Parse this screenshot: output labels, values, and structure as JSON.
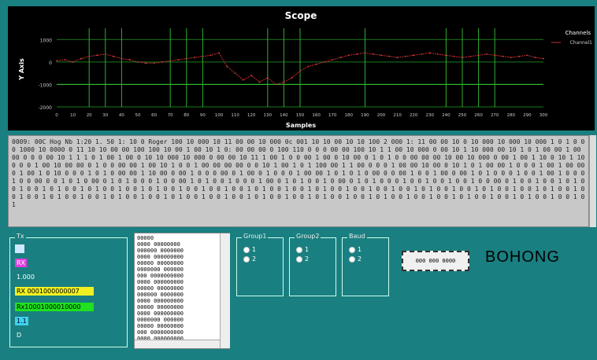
{
  "chart_data": {
    "type": "line",
    "title": "Scope",
    "xlabel": "Samples",
    "ylabel": "Y Axis",
    "legend": {
      "placement": "top-right",
      "entries": [
        "Channels",
        "Channel1"
      ]
    },
    "y_ticks": [
      "1000",
      "0",
      "-1000",
      "-2000"
    ],
    "ylim": [
      -2000,
      1500
    ],
    "x_ticks": [
      "0",
      "10",
      "20",
      "30",
      "40",
      "50",
      "60",
      "70",
      "80",
      "90",
      "100",
      "110",
      "120",
      "130",
      "140",
      "150",
      "160",
      "170",
      "180",
      "190",
      "200",
      "210",
      "220",
      "230",
      "240",
      "250",
      "260",
      "270",
      "280",
      "290",
      "300"
    ],
    "xlim": [
      0,
      300
    ],
    "grid": true,
    "series": [
      {
        "name": "Channel1",
        "x": [
          0,
          5,
          10,
          15,
          20,
          25,
          30,
          35,
          40,
          45,
          50,
          55,
          60,
          65,
          70,
          75,
          80,
          85,
          90,
          95,
          100,
          105,
          110,
          115,
          120,
          125,
          130,
          135,
          140,
          145,
          150,
          155,
          160,
          165,
          170,
          175,
          180,
          185,
          190,
          195,
          200,
          205,
          210,
          215,
          220,
          225,
          230,
          235,
          240,
          245,
          250,
          255,
          260,
          265,
          270,
          275,
          280,
          285,
          290,
          295,
          300
        ],
        "values": [
          50,
          100,
          0,
          150,
          250,
          300,
          350,
          250,
          150,
          100,
          0,
          -50,
          -50,
          0,
          50,
          100,
          150,
          200,
          250,
          300,
          400,
          -200,
          -500,
          -800,
          -600,
          -900,
          -700,
          -1000,
          -900,
          -700,
          -400,
          -200,
          -100,
          0,
          100,
          200,
          300,
          350,
          400,
          350,
          300,
          250,
          200,
          250,
          300,
          350,
          400,
          350,
          300,
          250,
          200,
          250,
          300,
          350,
          300,
          250,
          200,
          250,
          300,
          200,
          150
        ]
      }
    ],
    "vlines_x": [
      20,
      30,
      40,
      70,
      80,
      90,
      130,
      140,
      150,
      190,
      240,
      250,
      260,
      270
    ]
  },
  "log_text": "0009: 00C Hog Nb 1:20 1. 50 1: 10 0 Roger 100 10 000 10 11 00 00 10 000 0c 001 10 10 00 10 10 100 2 000 1: 11 00 00 10 0 10 000 10 000 10 000 1 0 1 0 0 0 1000 10 0000 0 11 10 10 00 00 100 100 10 00 1 00 10 1 0: 00 00 00 0 100 110 0 0 0 00 00 100 10 1 1 00 10 000 0 00 10 1 10 000 00 10 1 0 1 00 00 1 00 00 0 0 0 00 10 1 1 1 0 1 00 1 00 0 10 10 000 10 000 0 00 00 10 11 1 00 1 0 0 00 1 00 0 10 00 0 1 0 1 0 0 00 00 00 10 00 10 000 0 00 1 00 1 10 0 10 1 100 0 0 1 00 10 00 00 0 1 0 0 00 00 1 00 10 1 0 0 1 00 00 00 00 0 0 10 1 00 1 0 1 100 00 1 1 00 0 0 0 1 00 00 10 00 0 10 1 0 1 00 00 1 0 0 0 1 00 1 00 00 0 1 00 1 0 10 0 0 0 1 0 1 0 00 00 1 10 00 0 00 1 0 0 0 00 0 1 00 0 1 0 0 0 1 00 00 1 0 1 0 1 0 00 0 0 00 1 0 0 1 00 0 00 1 0 1 0 0 0 1 0 0 1 00 1 0 0 0 1 0 0 00 0 0 1 0 1 0 00 0 1 0 1 0 0 0 1 0 0 00 1 0 1 0 0 1 0 0 0 1 00 0 1 0 1 0 0 1 0 00 0 1 0 1 0 0 0 1 0 0 1 0 0 1 0 0 1 0 0 00 0 1 0 0 1 0 0 1 0 1 0 0 1 0 0 1 0 1 0 0 1 0 1 0 0 1 0 0 1 0 1 0 0 1 0 0 1 0 0 1 0 0 1 0 1 0 0 1 0 0 1 0 1 0 0 1 0 0 1 0 0 1 0 0 1 0 1 0 0 1 0 0 1 0 1 0 0 1 0 0 1 0 1 0 0 1 0 0 1 0 0 1 0 1 0 0 1 0 0 1 0 1 0 0 1 0 0 1 0 1 0 0 1 0 0 1 0 0 1 0 1 0 0 1 0 0 1 0 1 0 0 1 0 0 1 0 1 0 0 1 0 0 1 0 0 1 0 1 0 0 1 0 0 1 0 1 0 0 1 0 0 1 0 1",
  "status_panel": {
    "title": "Tx",
    "items": [
      {
        "text": "",
        "bg": "#cfe7ff",
        "color": "#000"
      },
      {
        "text": "RX",
        "bg": "#e040e0",
        "color": "#fff"
      },
      {
        "text": "1.000",
        "bg": "transparent",
        "color": "#fff"
      },
      {
        "text": "RX 0001000000007",
        "bg": "#f0f020",
        "color": "#000"
      },
      {
        "text": "Rx10001000010000",
        "bg": "#20e020",
        "color": "#000"
      },
      {
        "text": "1.1",
        "bg": "#40d0f0",
        "color": "#000"
      },
      {
        "text": "D",
        "bg": "transparent",
        "color": "#fff"
      }
    ]
  },
  "listbox": {
    "lines": [
      "00000",
      "0000 00000000",
      "000000 0000000",
      "0000 000000000",
      "00000 00000000",
      "0000000 000000",
      "000 0000000000",
      "0000 000000000",
      "00000 00000000",
      "000000 0000000",
      "0000 000000000",
      "00000 00000000",
      "0000 000000000",
      "0000000 000000",
      "00000 00000000",
      "000 0000000000",
      "0000 000000000",
      "000000 0000000",
      "0000 000000000"
    ]
  },
  "groups": [
    {
      "title": "Group1",
      "options": [
        "1",
        "2"
      ]
    },
    {
      "title": "Group2",
      "options": [
        "1",
        "2"
      ]
    },
    {
      "title": "Baud",
      "options": [
        "1",
        "2"
      ]
    }
  ],
  "button_label": "000 000 0000",
  "brand": "BOHONG"
}
